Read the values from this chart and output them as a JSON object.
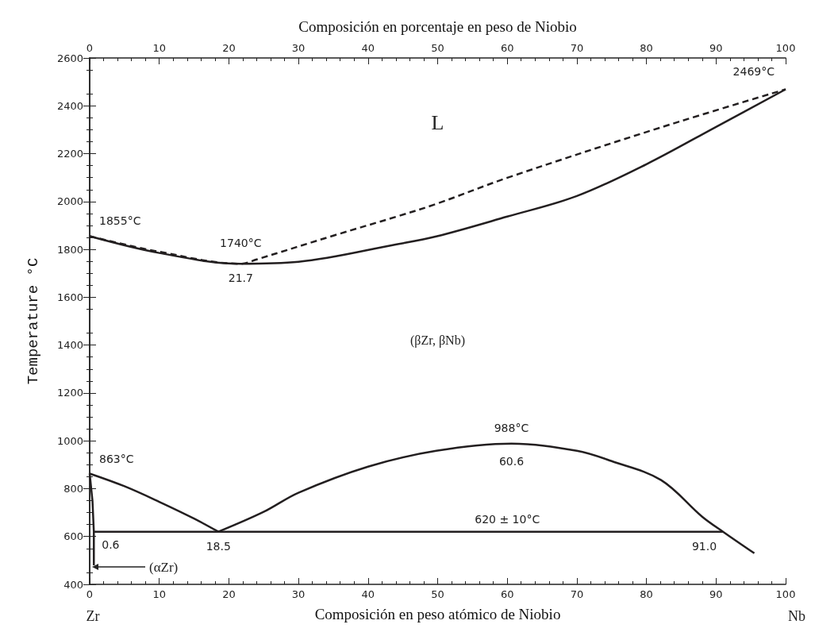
{
  "chart_data": {
    "type": "line",
    "xlabel": "Composición en peso atómico de Niobio",
    "x2label": "Composición en porcentaje en peso de Niobio",
    "ylabel": "Temperature °C",
    "xlim": [
      0,
      100
    ],
    "xticks": [
      0,
      10,
      20,
      30,
      40,
      50,
      60,
      70,
      80,
      90,
      100
    ],
    "x2lim": [
      0,
      100
    ],
    "x2ticks": [
      0,
      10,
      20,
      30,
      40,
      50,
      60,
      70,
      80,
      90,
      100
    ],
    "ylim": [
      400,
      2600
    ],
    "yticks": [
      400,
      600,
      800,
      1000,
      1200,
      1400,
      1600,
      1800,
      2000,
      2200,
      2400,
      2600
    ],
    "grid": false,
    "marker": "none",
    "series": [
      {
        "color": "#231f20",
        "line_style": "dashed",
        "x": [
          0,
          10,
          21.7,
          24,
          35.3,
          44.1,
          49.8,
          60.1,
          82.1,
          100
        ],
        "values": [
          1855,
          1790,
          1740,
          1758,
          1860,
          1937,
          1990,
          2100,
          2310,
          2469
        ]
      },
      {
        "color": "#231f20",
        "line_style": "solid",
        "x": [
          0,
          10,
          21.7,
          30,
          44.1,
          49.8,
          60,
          70,
          80,
          90,
          100
        ],
        "values": [
          1855,
          1785,
          1740,
          1748,
          1821,
          1854,
          1937,
          2023,
          2156,
          2312,
          2469
        ]
      },
      {
        "color": "#231f20",
        "line_style": "solid",
        "x": [
          0,
          5,
          10,
          15,
          18.5
        ],
        "values": [
          863,
          810,
          745,
          675,
          620
        ]
      },
      {
        "color": "#231f20",
        "line_style": "solid",
        "x": [
          18.5,
          25,
          30,
          40,
          49.8,
          60.6,
          70,
          75,
          82.1,
          88,
          91,
          95.5
        ],
        "values": [
          620,
          703,
          783,
          892,
          958,
          988,
          958,
          915,
          836,
          683,
          620,
          530
        ]
      },
      {
        "color": "#231f20",
        "line_style": "solid",
        "x": [
          0,
          0.4,
          0.6,
          0.6
        ],
        "values": [
          863,
          750,
          620,
          480
        ]
      },
      {
        "color": "#231f20",
        "line_style": "solid",
        "x": [
          0.6,
          91
        ],
        "values": [
          620,
          620
        ]
      }
    ],
    "annotations": [
      "L",
      "(βZr, βNb)",
      "(αZr)",
      "Zr",
      "Nb",
      {
        "text": "1855°C",
        "x": 0,
        "y": 1855
      },
      {
        "text": "1740°C",
        "x": 21.7,
        "y": 1740
      },
      {
        "text": "21.7",
        "x": 21.7,
        "y": 1740
      },
      {
        "text": "2469°C",
        "x": 100,
        "y": 2469
      },
      {
        "text": "863°C",
        "x": 0,
        "y": 863
      },
      {
        "text": "988°C",
        "x": 60.6,
        "y": 988
      },
      {
        "text": "60.6",
        "x": 60.6,
        "y": 988
      },
      {
        "text": "620 ± 10°C",
        "x": 60,
        "y": 620
      },
      {
        "text": "0.6",
        "x": 0.6,
        "y": 620
      },
      {
        "text": "18.5",
        "x": 18.5,
        "y": 620
      },
      {
        "text": "91.0",
        "x": 91,
        "y": 620
      }
    ]
  }
}
